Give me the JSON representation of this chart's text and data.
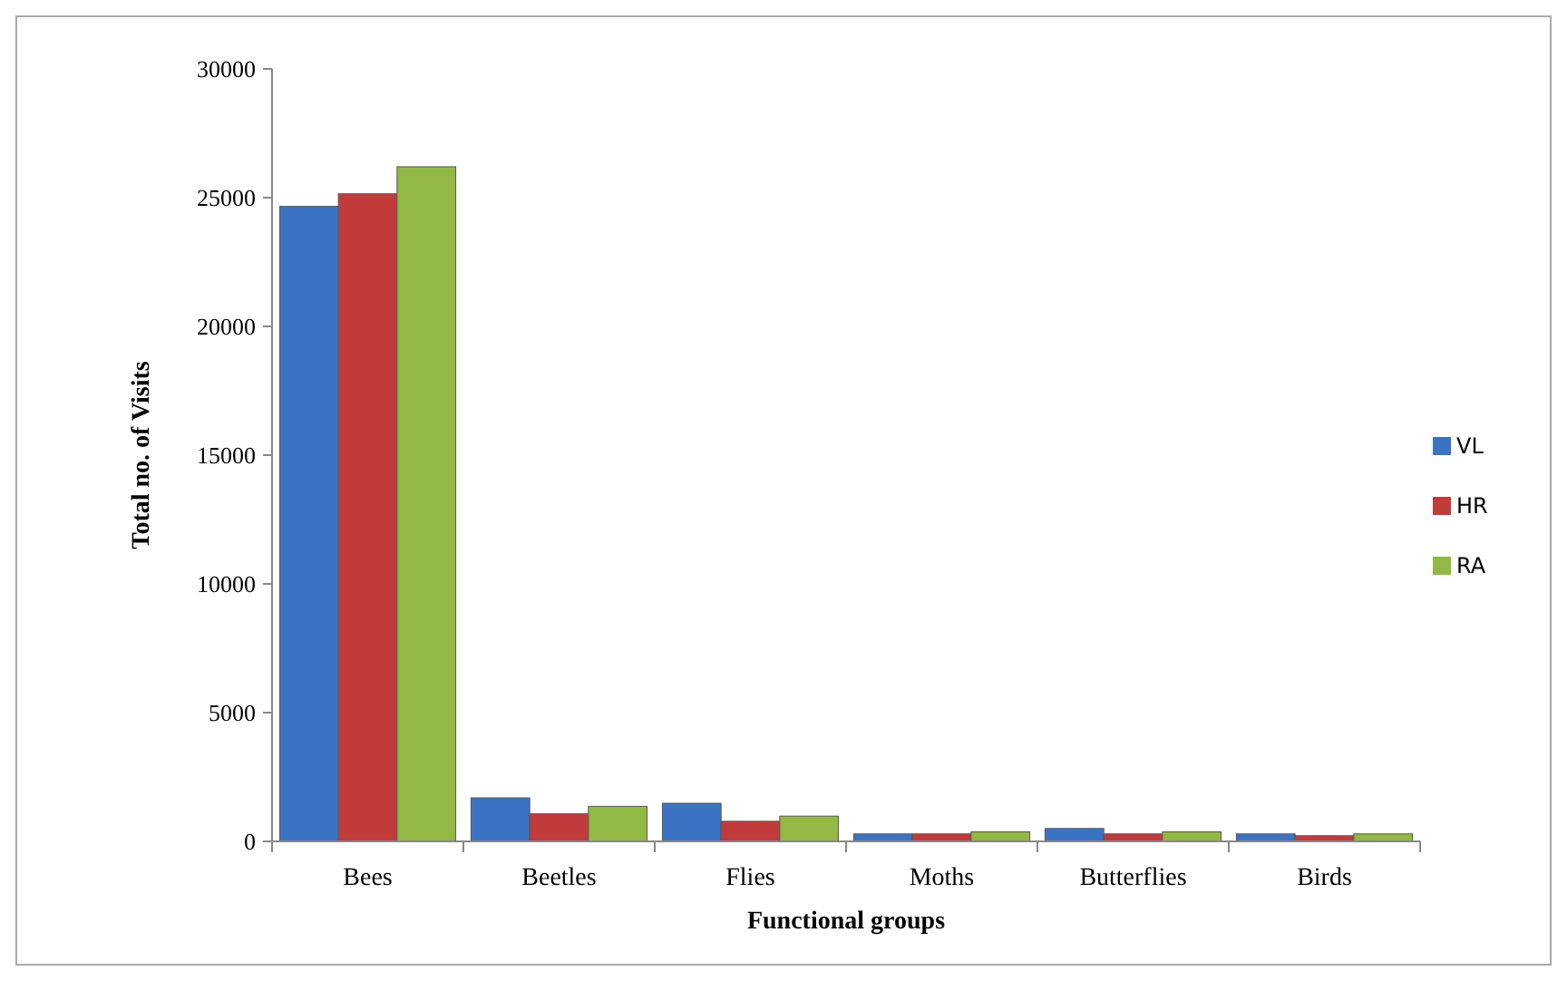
{
  "chart_data": {
    "type": "bar",
    "xlabel": "Functional  groups",
    "ylabel": "Total  no. of Visits",
    "categories": [
      "Bees",
      "Beetles",
      "Flies",
      "Moths",
      "Butterflies",
      "Birds"
    ],
    "series": [
      {
        "name": "VL",
        "color": "#3b73c2",
        "values": [
          24660,
          1690,
          1480,
          290,
          500,
          290
        ]
      },
      {
        "name": "HR",
        "color": "#c23b3b",
        "values": [
          25150,
          1070,
          780,
          290,
          290,
          220
        ]
      },
      {
        "name": "RA",
        "color": "#93b845",
        "values": [
          26200,
          1360,
          980,
          370,
          370,
          290
        ]
      }
    ],
    "ylim": [
      0,
      30000
    ],
    "yticks": [
      0,
      5000,
      10000,
      15000,
      20000,
      25000,
      30000
    ],
    "grid": false,
    "legend": "right"
  }
}
